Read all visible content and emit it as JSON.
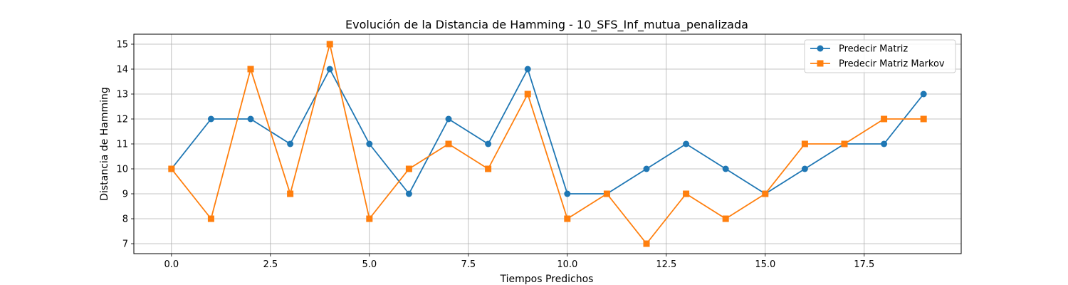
{
  "chart_data": {
    "type": "line",
    "title": "Evolución de la Distancia de Hamming - 10_SFS_Inf_mutua_penalizada",
    "xlabel": "Tiempos Predichos",
    "ylabel": "Distancia de Hamming",
    "x": [
      0,
      1,
      2,
      3,
      4,
      5,
      6,
      7,
      8,
      9,
      10,
      11,
      12,
      13,
      14,
      15,
      16,
      17,
      18,
      19
    ],
    "xlim": [
      -0.95,
      19.95
    ],
    "ylim": [
      6.6,
      15.4
    ],
    "xticks": [
      0,
      2.5,
      5,
      7.5,
      10,
      12.5,
      15,
      17.5
    ],
    "xtick_labels": [
      "0.0",
      "2.5",
      "5.0",
      "7.5",
      "10.0",
      "12.5",
      "15.0",
      "17.5"
    ],
    "yticks": [
      7,
      8,
      9,
      10,
      11,
      12,
      13,
      14,
      15
    ],
    "ytick_labels": [
      "7",
      "8",
      "9",
      "10",
      "11",
      "12",
      "13",
      "14",
      "15"
    ],
    "grid": true,
    "legend_position": "top-right",
    "series": [
      {
        "name": "Predecir Matriz",
        "color": "#1f77b4",
        "marker": "circle",
        "values": [
          10,
          12,
          12,
          11,
          14,
          11,
          9,
          12,
          11,
          14,
          9,
          9,
          10,
          11,
          10,
          9,
          10,
          11,
          11,
          13
        ]
      },
      {
        "name": "Predecir Matriz Markov",
        "color": "#ff7f0e",
        "marker": "square",
        "values": [
          10,
          8,
          14,
          9,
          15,
          8,
          10,
          11,
          10,
          13,
          8,
          9,
          7,
          9,
          8,
          9,
          11,
          11,
          12,
          12
        ]
      }
    ]
  }
}
